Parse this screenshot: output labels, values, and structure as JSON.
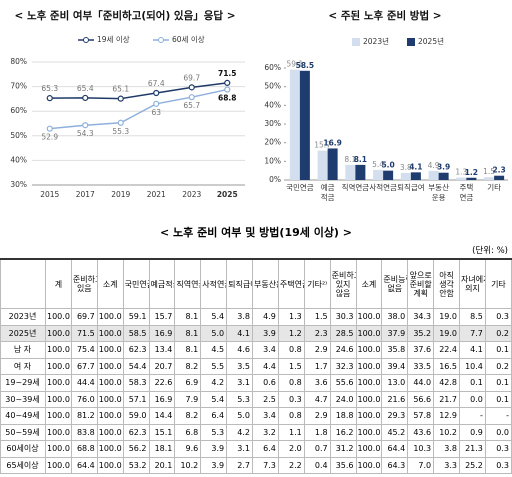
{
  "chart_data": [
    {
      "type": "line",
      "title": "< 노후 준비 여부「준비하고(되어) 있음」응답 >",
      "categories": [
        "2015",
        "2017",
        "2019",
        "2021",
        "2023",
        "2025"
      ],
      "series": [
        {
          "name": "19세 이상",
          "color": "#1f3a68",
          "values": [
            65.3,
            65.4,
            65.1,
            67.4,
            69.7,
            71.5
          ]
        },
        {
          "name": "60세 이상",
          "color": "#8fb0dc",
          "values": [
            52.9,
            54.3,
            55.3,
            63.0,
            65.7,
            68.8
          ]
        }
      ],
      "ylim": [
        30,
        80
      ],
      "yticks": [
        {
          "value": 30,
          "label": "30%"
        },
        {
          "value": 40,
          "label": "40%"
        },
        {
          "value": 50,
          "label": "50%"
        },
        {
          "value": 60,
          "label": "60%"
        },
        {
          "value": 70,
          "label": "70%"
        },
        {
          "value": 80,
          "label": "80%"
        }
      ],
      "grid": true
    },
    {
      "type": "bar",
      "title": "< 주된 노후 준비 방법 >",
      "categories": [
        "국민연금",
        "예금 적금",
        "직역연금",
        "사적연금",
        "퇴직급여",
        "부동산 운용",
        "주택 연금",
        "기타"
      ],
      "series": [
        {
          "name": "2023년",
          "color": "#d3deee",
          "values": [
            59.1,
            15.7,
            8.1,
            5.4,
            3.8,
            4.9,
            1.3,
            1.5
          ]
        },
        {
          "name": "2025년",
          "color": "#1f3c6e",
          "values": [
            58.5,
            16.9,
            8.1,
            5.0,
            4.1,
            3.9,
            1.2,
            2.3
          ],
          "value_labels": [
            "58.5",
            "16.9",
            "8.1",
            "5.0",
            "4.1",
            "3.9",
            "1.2",
            "2.3"
          ]
        }
      ],
      "ylim": [
        0,
        60
      ],
      "yticks": [
        {
          "value": 0,
          "label": "0%"
        },
        {
          "value": 10,
          "label": "10%"
        },
        {
          "value": 20,
          "label": "20%"
        },
        {
          "value": 30,
          "label": "30%"
        },
        {
          "value": 40,
          "label": "40%"
        },
        {
          "value": 50,
          "label": "50%"
        },
        {
          "value": 60,
          "label": "60%"
        }
      ],
      "grid": false
    }
  ],
  "table": {
    "title": "< 노후 준비 여부 및 방법(19세 이상) >",
    "unit": "(단위: %)",
    "columns": [
      "계",
      "준비하고 있음",
      "소계",
      "국민연금",
      "예금적금",
      "직역연금¹⁾",
      "사적연금",
      "퇴직급여",
      "부동산운용",
      "주택연금",
      "기타²⁾",
      "준비하고 있지 않음",
      "소계",
      "준비능력 없음",
      "앞으로 준비할 계획",
      "아직 생각 안함",
      "자녀에게 의지",
      "기타"
    ],
    "rows": [
      {
        "label": "2023년",
        "cells": [
          "100.0",
          "69.7",
          "100.0",
          "59.1",
          "15.7",
          "8.1",
          "5.4",
          "3.8",
          "4.9",
          "1.3",
          "1.5",
          "30.3",
          "100.0",
          "38.0",
          "34.3",
          "19.0",
          "8.5",
          "0.3"
        ]
      },
      {
        "label": "2025년",
        "cells": [
          "100.0",
          "71.5",
          "100.0",
          "58.5",
          "16.9",
          "8.1",
          "5.0",
          "4.1",
          "3.9",
          "1.2",
          "2.3",
          "28.5",
          "100.0",
          "37.9",
          "35.2",
          "19.0",
          "7.7",
          "0.2"
        ]
      },
      {
        "label": "남 자",
        "cells": [
          "100.0",
          "75.4",
          "100.0",
          "62.3",
          "13.4",
          "8.1",
          "4.5",
          "4.6",
          "3.4",
          "0.8",
          "2.9",
          "24.6",
          "100.0",
          "35.8",
          "37.6",
          "22.4",
          "4.1",
          "0.1"
        ]
      },
      {
        "label": "여 자",
        "cells": [
          "100.0",
          "67.7",
          "100.0",
          "54.4",
          "20.7",
          "8.2",
          "5.5",
          "3.5",
          "4.4",
          "1.5",
          "1.7",
          "32.3",
          "100.0",
          "39.4",
          "33.5",
          "16.5",
          "10.4",
          "0.2"
        ]
      },
      {
        "label": "19~29세",
        "cells": [
          "100.0",
          "44.4",
          "100.0",
          "58.3",
          "22.6",
          "6.9",
          "4.2",
          "3.1",
          "0.6",
          "0.8",
          "3.6",
          "55.6",
          "100.0",
          "13.0",
          "44.0",
          "42.8",
          "0.1",
          "0.1"
        ]
      },
      {
        "label": "30~39세",
        "cells": [
          "100.0",
          "76.0",
          "100.0",
          "57.1",
          "16.9",
          "7.9",
          "5.4",
          "5.3",
          "2.5",
          "0.3",
          "4.7",
          "24.0",
          "100.0",
          "21.6",
          "56.6",
          "21.7",
          "0.0",
          "0.1"
        ]
      },
      {
        "label": "40~49세",
        "cells": [
          "100.0",
          "81.2",
          "100.0",
          "59.0",
          "14.4",
          "8.2",
          "6.4",
          "5.0",
          "3.4",
          "0.8",
          "2.9",
          "18.8",
          "100.0",
          "29.3",
          "57.8",
          "12.9",
          "-",
          "-"
        ]
      },
      {
        "label": "50~59세",
        "cells": [
          "100.0",
          "83.8",
          "100.0",
          "62.3",
          "15.1",
          "6.8",
          "5.3",
          "4.2",
          "3.2",
          "1.1",
          "1.8",
          "16.2",
          "100.0",
          "45.2",
          "43.6",
          "10.2",
          "0.9",
          "0.0"
        ]
      },
      {
        "label": "60세이상",
        "cells": [
          "100.0",
          "68.8",
          "100.0",
          "56.2",
          "18.1",
          "9.6",
          "3.9",
          "3.1",
          "6.4",
          "2.0",
          "0.7",
          "31.2",
          "100.0",
          "64.4",
          "10.3",
          "3.8",
          "21.3",
          "0.3"
        ]
      },
      {
        "label": "65세이상",
        "cells": [
          "100.0",
          "64.4",
          "100.0",
          "53.2",
          "20.1",
          "10.2",
          "3.9",
          "2.7",
          "7.3",
          "2.2",
          "0.4",
          "35.6",
          "100.0",
          "64.3",
          "7.0",
          "3.3",
          "25.2",
          "0.3"
        ]
      }
    ]
  }
}
